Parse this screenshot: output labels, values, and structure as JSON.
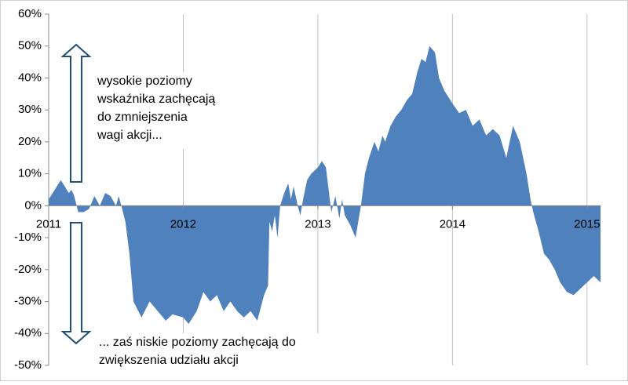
{
  "chart_data": {
    "type": "area",
    "x": [
      2011.0,
      2011.03,
      2011.06,
      2011.09,
      2011.12,
      2011.15,
      2011.17,
      2011.19,
      2011.22,
      2011.26,
      2011.3,
      2011.34,
      2011.38,
      2011.42,
      2011.46,
      2011.5,
      2011.52,
      2011.54,
      2011.57,
      2011.6,
      2011.63,
      2011.69,
      2011.75,
      2011.81,
      2011.87,
      2011.92,
      2012.0,
      2012.04,
      2012.1,
      2012.15,
      2012.2,
      2012.25,
      2012.3,
      2012.35,
      2012.4,
      2012.45,
      2012.5,
      2012.55,
      2012.6,
      2012.63,
      2012.64,
      2012.66,
      2012.68,
      2012.7,
      2012.72,
      2012.75,
      2012.78,
      2012.8,
      2012.82,
      2012.85,
      2012.87,
      2012.89,
      2012.92,
      2012.95,
      2013.0,
      2013.03,
      2013.06,
      2013.08,
      2013.1,
      2013.13,
      2013.16,
      2013.18,
      2013.2,
      2013.24,
      2013.28,
      2013.3,
      2013.32,
      2013.35,
      2013.38,
      2013.42,
      2013.45,
      2013.48,
      2013.5,
      2013.54,
      2013.58,
      2013.62,
      2013.66,
      2013.7,
      2013.74,
      2013.77,
      2013.8,
      2013.83,
      2013.87,
      2013.9,
      2013.94,
      2014.0,
      2014.05,
      2014.1,
      2014.15,
      2014.2,
      2014.25,
      2014.3,
      2014.35,
      2014.4,
      2014.45,
      2014.5,
      2014.55,
      2014.58,
      2014.6,
      2014.64,
      2014.68,
      2014.72,
      2014.76,
      2014.8,
      2014.85,
      2014.9,
      2014.95,
      2015.0,
      2015.05,
      2015.1
    ],
    "values": [
      2,
      4,
      6,
      8,
      6,
      4,
      5,
      3,
      -2,
      -2,
      -1,
      3,
      0,
      4,
      3,
      0,
      3,
      0,
      -5,
      -15,
      -30,
      -35,
      -30,
      -33,
      -36,
      -34,
      -35,
      -37,
      -33,
      -27,
      -30,
      -28,
      -33,
      -30,
      -33,
      -35,
      -33,
      -36,
      -28,
      -25,
      -5,
      -8,
      -3,
      -10,
      0,
      4,
      7,
      2,
      6,
      0,
      -3,
      2,
      8,
      10,
      12,
      14,
      12,
      5,
      -2,
      3,
      -4,
      2,
      -3,
      -6,
      -10,
      -5,
      0,
      10,
      15,
      20,
      17,
      22,
      20,
      25,
      28,
      30,
      33,
      35,
      42,
      46,
      45,
      50,
      48,
      40,
      36,
      32,
      29,
      30,
      25,
      27,
      22,
      24,
      22,
      15,
      25,
      20,
      10,
      2,
      -2,
      -8,
      -15,
      -17,
      -20,
      -24,
      -27,
      -28,
      -26,
      -24,
      -22,
      -24
    ],
    "color": "#4f81bd",
    "xlim": [
      2011,
      2015.1
    ],
    "xticks": [
      2011,
      2012,
      2013,
      2014,
      2015
    ],
    "ylim": [
      -50,
      60
    ],
    "yticks": [
      {
        "value": -50,
        "label": "-50%"
      },
      {
        "value": -40,
        "label": "-40%"
      },
      {
        "value": -30,
        "label": "-30%"
      },
      {
        "value": -20,
        "label": "-20%"
      },
      {
        "value": -10,
        "label": "-10%"
      },
      {
        "value": 0,
        "label": "0%"
      },
      {
        "value": 10,
        "label": "10%"
      },
      {
        "value": 20,
        "label": "20%"
      },
      {
        "value": 30,
        "label": "30%"
      },
      {
        "value": 40,
        "label": "40%"
      },
      {
        "value": 50,
        "label": "50%"
      },
      {
        "value": 60,
        "label": "60%"
      }
    ],
    "grid": true,
    "annotations": [
      {
        "lines": [
          "wysokie poziomy",
          "wskaźnika zachęcają",
          "do zmniejszenia",
          "wagi akcji..."
        ]
      },
      {
        "lines": [
          "... zaś niskie poziomy zachęcają do",
          "zwiększenia udziału akcji"
        ]
      }
    ]
  }
}
